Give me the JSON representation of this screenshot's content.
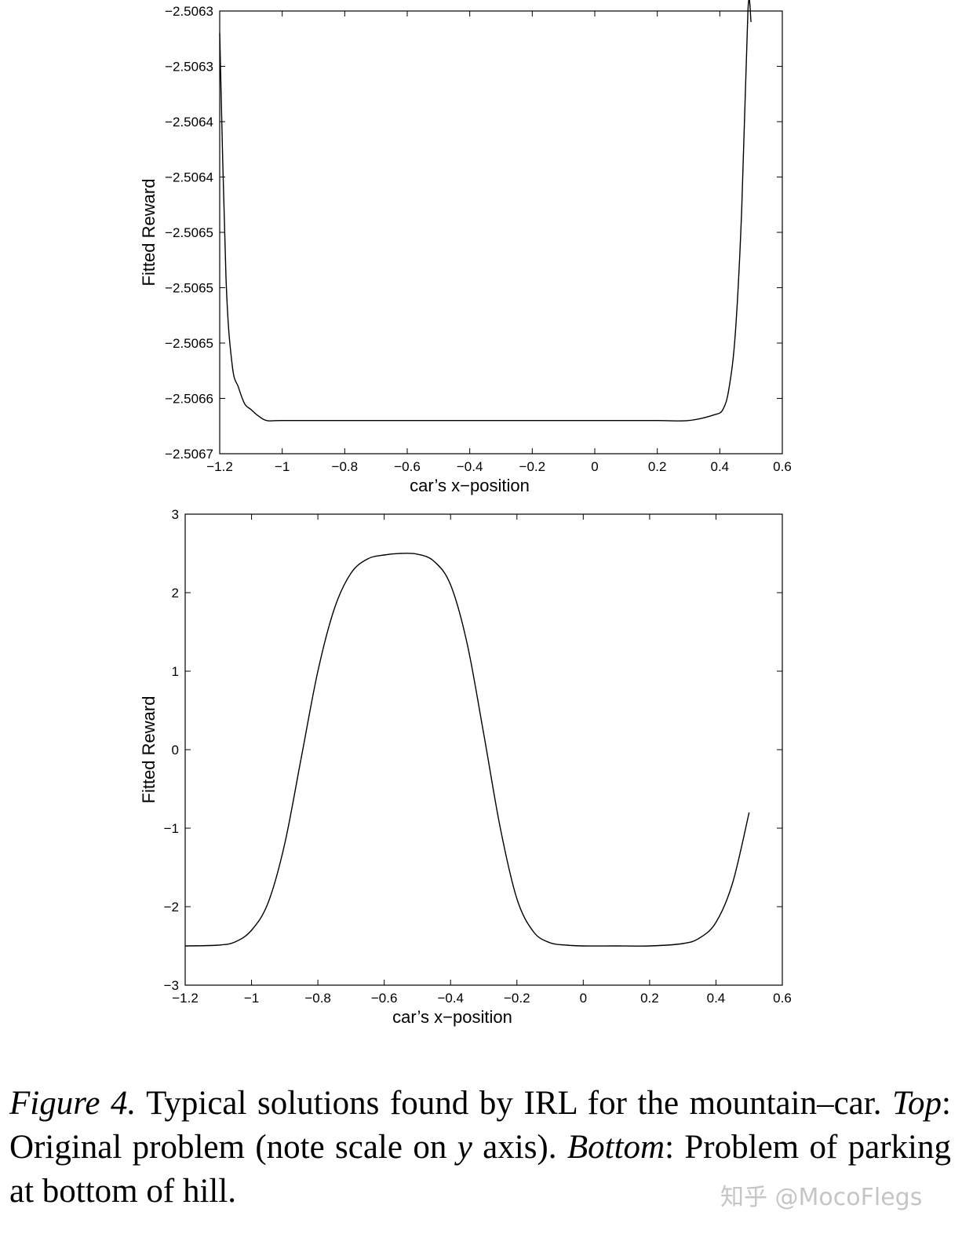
{
  "chart_data": [
    {
      "type": "line",
      "title": "",
      "xlabel": "car’s x−position",
      "ylabel": "Fitted Reward",
      "xlim": [
        -1.2,
        0.6
      ],
      "ylim": [
        -2.5067,
        -2.5063
      ],
      "xticks": [
        "−1.2",
        "−1",
        "−0.8",
        "−0.6",
        "−0.4",
        "−0.2",
        "0",
        "0.2",
        "0.4",
        "0.6"
      ],
      "yticks": [
        "−2.5063",
        "−2.5063",
        "−2.5064",
        "−2.5064",
        "−2.5065",
        "−2.5065",
        "−2.5065",
        "−2.5066",
        "−2.5067"
      ],
      "series": [
        {
          "x": [
            -1.2,
            -1.18,
            -1.16,
            -1.14,
            -1.12,
            -1.1,
            -1.08,
            -1.05,
            -1.0,
            -0.8,
            -0.6,
            -0.4,
            -0.2,
            0.0,
            0.2,
            0.3,
            0.38,
            0.41,
            0.43,
            0.45,
            0.47,
            0.49,
            0.5
          ],
          "y": [
            -2.50632,
            -2.50654,
            -2.50662,
            -2.50664,
            -2.506655,
            -2.50666,
            -2.506665,
            -2.50667,
            -2.50667,
            -2.50667,
            -2.50667,
            -2.50667,
            -2.50667,
            -2.50667,
            -2.50667,
            -2.50667,
            -2.506665,
            -2.50666,
            -2.50664,
            -2.50659,
            -2.50648,
            -2.5063,
            -2.50631
          ]
        }
      ]
    },
    {
      "type": "line",
      "title": "",
      "xlabel": "car’s x−position",
      "ylabel": "Fitted Reward",
      "xlim": [
        -1.2,
        0.6
      ],
      "ylim": [
        -3,
        3
      ],
      "xticks": [
        "−1.2",
        "−1",
        "−0.8",
        "−0.6",
        "−0.4",
        "−0.2",
        "0",
        "0.2",
        "0.4",
        "0.6"
      ],
      "yticks": [
        "3",
        "2",
        "1",
        "0",
        "−1",
        "−2",
        "−3"
      ],
      "series": [
        {
          "x": [
            -1.2,
            -1.1,
            -1.05,
            -1.0,
            -0.95,
            -0.9,
            -0.85,
            -0.8,
            -0.75,
            -0.7,
            -0.65,
            -0.6,
            -0.55,
            -0.5,
            -0.45,
            -0.4,
            -0.35,
            -0.3,
            -0.25,
            -0.2,
            -0.15,
            -0.1,
            -0.05,
            0.0,
            0.1,
            0.2,
            0.3,
            0.35,
            0.4,
            0.45,
            0.5
          ],
          "y": [
            -2.5,
            -2.49,
            -2.45,
            -2.3,
            -1.95,
            -1.2,
            -0.1,
            1.0,
            1.8,
            2.25,
            2.43,
            2.48,
            2.5,
            2.49,
            2.4,
            2.1,
            1.35,
            0.2,
            -1.0,
            -1.9,
            -2.32,
            -2.46,
            -2.49,
            -2.5,
            -2.5,
            -2.5,
            -2.47,
            -2.4,
            -2.2,
            -1.7,
            -0.8
          ]
        }
      ]
    }
  ],
  "caption": {
    "label": "Figure 4.",
    "text1": " Typical solutions found by IRL for the mountain–car. ",
    "top_label": "Top",
    "text2": ": Original problem (note scale on ",
    "y_var": "y",
    "text3": " axis). ",
    "bottom_label": "Bottom",
    "text4": ": Problem of parking at bottom of hill."
  },
  "watermark": "知乎 @MocoFlegs"
}
